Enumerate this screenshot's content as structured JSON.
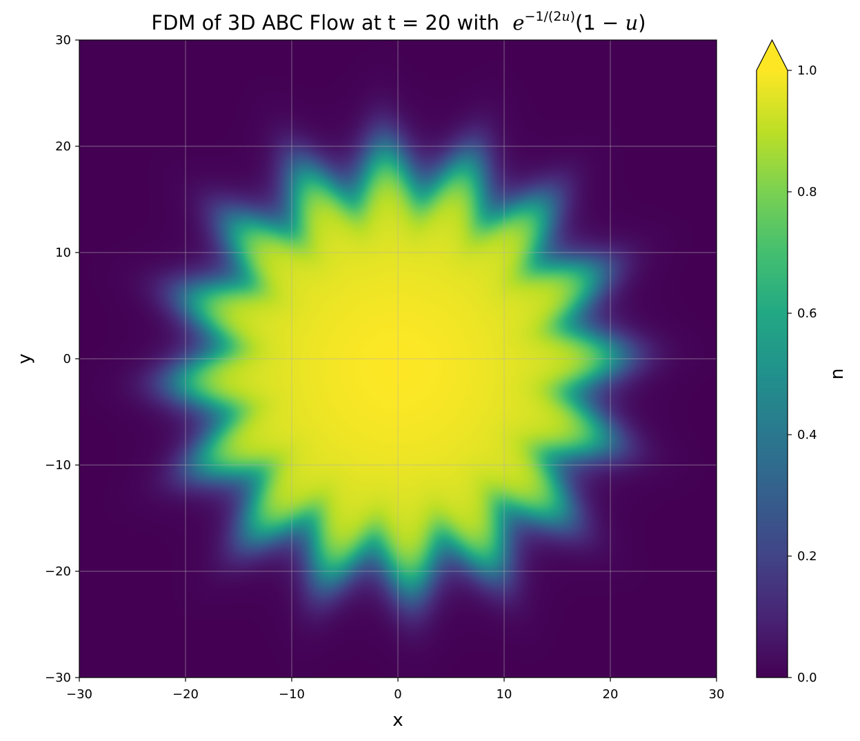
{
  "chart_data": {
    "type": "heatmap",
    "title_prefix": "FDM of 3D ABC Flow at t = 20 with",
    "title_formula": "e^{-1/(2u)}(1 - u)",
    "xlabel": "x",
    "ylabel": "y",
    "xlim": [
      -30,
      30
    ],
    "ylim": [
      -30,
      30
    ],
    "xticks": [
      -30,
      -20,
      -10,
      0,
      10,
      20,
      30
    ],
    "yticks": [
      -30,
      -20,
      -10,
      0,
      10,
      20,
      30
    ],
    "xtick_labels": [
      "−30",
      "−20",
      "−10",
      "0",
      "10",
      "20",
      "30"
    ],
    "ytick_labels": [
      "−30",
      "−20",
      "−10",
      "0",
      "10",
      "20",
      "30"
    ],
    "grid": true,
    "colormap": "viridis",
    "colorbar": {
      "label": "u",
      "range": [
        0.0,
        1.0
      ],
      "extend": "max",
      "ticks": [
        0.0,
        0.2,
        0.4,
        0.6,
        0.8,
        1.0
      ],
      "tick_labels": [
        "0.0",
        "0.2",
        "0.4",
        "0.6",
        "0.8",
        "1.0"
      ]
    },
    "field": {
      "description_of_values": "u ≈ 1 inside a lobed disk centred near (0, 0), falling to 0 outside",
      "center": [
        0,
        -1
      ],
      "plateau_radius": 14,
      "front_radius": 19,
      "front_width": 3.5,
      "lobes": 16,
      "lobe_amplitude": 1.6
    },
    "colors": {
      "viridis_stops": [
        "#440154",
        "#482475",
        "#414487",
        "#355f8d",
        "#2a788e",
        "#21918c",
        "#22a884",
        "#44bf70",
        "#7ad151",
        "#bddf26",
        "#fde725"
      ]
    }
  }
}
